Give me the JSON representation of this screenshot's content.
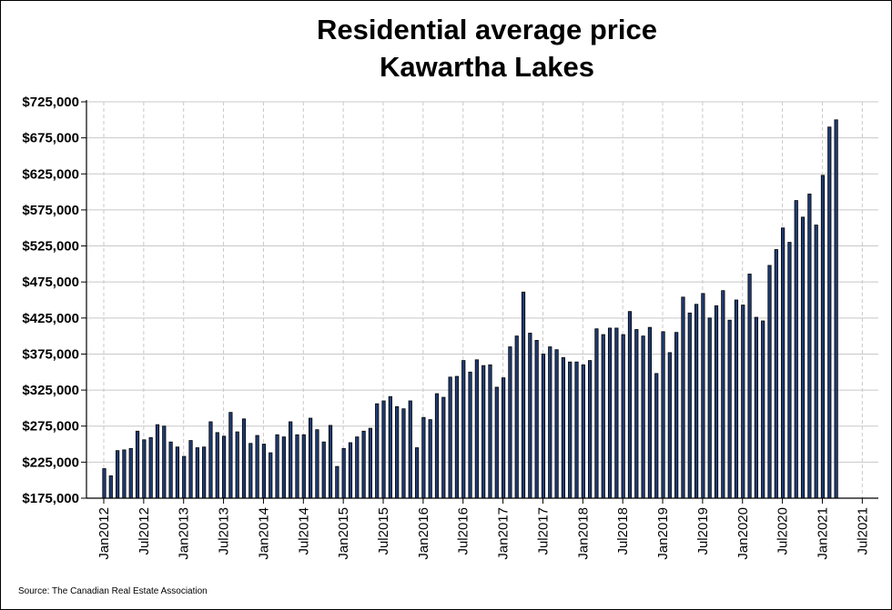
{
  "chart_data": {
    "type": "bar",
    "title": "Residential average price",
    "subtitle": "Kawartha Lakes",
    "source": "Source: The Canadian Real Estate Association",
    "ylim": [
      175000,
      725000
    ],
    "y_ticks": [
      "$725,000",
      "$675,000",
      "$625,000",
      "$575,000",
      "$525,000",
      "$475,000",
      "$425,000",
      "$375,000",
      "$325,000",
      "$275,000",
      "$225,000",
      "$175,000"
    ],
    "y_tick_values": [
      725000,
      675000,
      625000,
      575000,
      525000,
      475000,
      425000,
      375000,
      325000,
      275000,
      225000,
      175000
    ],
    "x_ticks": [
      "Jan2012",
      "Jul2012",
      "Jan2013",
      "Jul2013",
      "Jan2014",
      "Jul2014",
      "Jan2015",
      "Jul2015",
      "Jan2016",
      "Jul2016",
      "Jan2017",
      "Jul2017",
      "Jan2018",
      "Jul2018",
      "Jan2019",
      "Jul2019",
      "Jan2020",
      "Jul2020",
      "Jan2021",
      "Jul2021"
    ],
    "start": "Jan2012",
    "grid": true,
    "colors": {
      "bar_fill": "#1f3b73",
      "bar_stroke": "#000000",
      "grid": "#c8c8c8"
    },
    "values": [
      216000,
      206000,
      241000,
      242000,
      244000,
      268000,
      256000,
      259000,
      277000,
      275000,
      253000,
      246000,
      233000,
      255000,
      245000,
      246000,
      281000,
      266000,
      261000,
      294000,
      267000,
      285000,
      251000,
      262000,
      250000,
      238000,
      263000,
      260000,
      281000,
      263000,
      263000,
      286000,
      270000,
      253000,
      276000,
      219000,
      244000,
      252000,
      260000,
      268000,
      272000,
      306000,
      310000,
      316000,
      302000,
      299000,
      310000,
      245000,
      287000,
      284000,
      320000,
      315000,
      343000,
      344000,
      366000,
      350000,
      367000,
      359000,
      360000,
      329000,
      342000,
      385000,
      400000,
      461000,
      404000,
      394000,
      375000,
      385000,
      381000,
      370000,
      364000,
      364000,
      360000,
      366000,
      410000,
      402000,
      411000,
      411000,
      402000,
      434000,
      409000,
      400000,
      412000,
      348000,
      406000,
      377000,
      405000,
      454000,
      432000,
      444000,
      459000,
      425000,
      442000,
      463000,
      422000,
      450000,
      443000,
      486000,
      426000,
      421000,
      498000,
      520000,
      550000,
      530000,
      588000,
      565000,
      597000,
      554000,
      623000,
      690000,
      700000
    ]
  }
}
